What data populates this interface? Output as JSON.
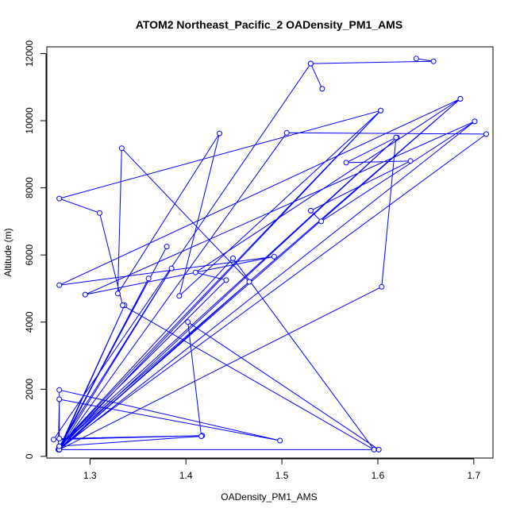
{
  "chart_data": {
    "type": "line",
    "title": "ATOM2 Northeast_Pacific_2 OADensity_PM1_AMS",
    "xlabel": "OADensity_PM1_AMS",
    "ylabel": "Altitude (m)",
    "xlim": [
      1.255,
      1.72
    ],
    "ylim": [
      -50,
      12200
    ],
    "xticks": [
      1.3,
      1.4,
      1.5,
      1.6,
      1.7
    ],
    "xtick_labels": [
      "1.3",
      "1.4",
      "1.5",
      "1.6",
      "1.7"
    ],
    "yticks": [
      0,
      2000,
      4000,
      6000,
      8000,
      10000,
      12000
    ],
    "ytick_labels": [
      "0",
      "2000",
      "4000",
      "6000",
      "8000",
      "10000",
      "12000"
    ],
    "color": "#0000ff",
    "marker": "open-circle",
    "grid": false,
    "legend": "none",
    "series": [
      {
        "x": [
          1.53,
          1.542,
          null,
          1.64,
          1.658,
          1.53,
          1.262,
          1.417,
          1.268,
          1.268,
          1.498,
          1.268,
          1.267,
          1.38,
          1.268,
          1.361,
          1.268,
          1.385,
          1.268,
          1.686,
          1.268,
          1.601,
          1.402,
          1.416,
          1.268,
          1.62,
          1.268,
          1.336,
          1.268,
          1.713,
          1.505,
          1.268,
          1.466,
          1.333,
          1.329,
          1.435,
          1.393,
          1.603,
          1.268,
          1.449,
          1.596,
          1.334,
          1.31,
          1.268,
          1.603,
          1.268,
          1.701,
          1.268,
          1.604,
          1.619,
          1.567,
          1.634,
          1.53,
          1.541,
          1.701,
          1.295,
          1.492,
          1.268,
          1.686,
          1.41,
          1.442,
          1.268
        ],
        "y": [
          11700,
          10950,
          null,
          11850,
          11770,
          11700,
          500,
          620,
          530,
          1980,
          470,
          1700,
          200,
          6250,
          250,
          5300,
          200,
          5600,
          300,
          10650,
          200,
          200,
          4000,
          600,
          300,
          9500,
          200,
          4500,
          250,
          9600,
          9640,
          200,
          5200,
          9180,
          4850,
          9620,
          4780,
          10300,
          300,
          5900,
          200,
          4500,
          7250,
          7680,
          10300,
          200,
          9980,
          200,
          5050,
          9500,
          8750,
          8800,
          7320,
          7000,
          9980,
          4820,
          5950,
          5100,
          10650,
          5480,
          5250,
          300
        ]
      }
    ]
  }
}
